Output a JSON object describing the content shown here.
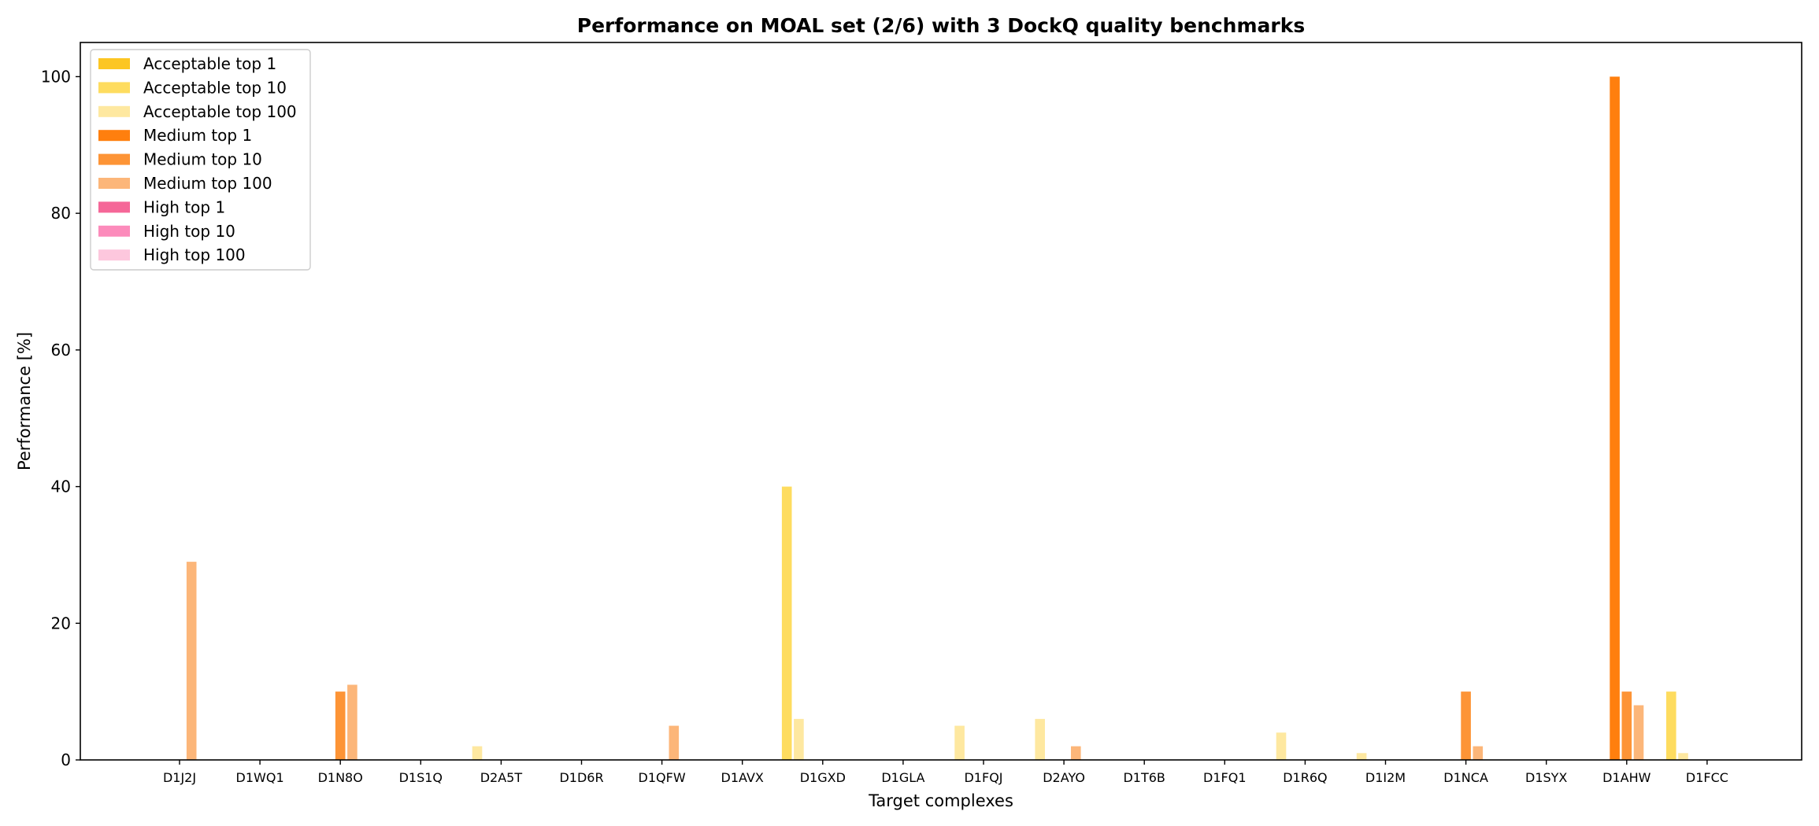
{
  "chart_data": {
    "type": "bar",
    "title": "Performance on MOAL set (2/6) with 3 DockQ quality benchmarks",
    "xlabel": "Target complexes",
    "ylabel": "Performance [%]",
    "ylim": [
      0,
      105
    ],
    "yticks": [
      0,
      20,
      40,
      60,
      80,
      100
    ],
    "grid": false,
    "legend_position": "top-left",
    "categories": [
      "D1J2J",
      "D1WQ1",
      "D1N8O",
      "D1S1Q",
      "D2A5T",
      "D1D6R",
      "D1QFW",
      "D1AVX",
      "D1GXD",
      "D1GLA",
      "D1FQJ",
      "D2AYO",
      "D1T6B",
      "D1FQ1",
      "D1R6Q",
      "D1I2M",
      "D1NCA",
      "D1SYX",
      "D1AHW",
      "D1FCC"
    ],
    "series": [
      {
        "name": "Acceptable top 1",
        "color": "#fcc623",
        "values": [
          0,
          0,
          0,
          0,
          0,
          0,
          0,
          0,
          0,
          0,
          0,
          0,
          0,
          0,
          0,
          0,
          0,
          0,
          0,
          0
        ]
      },
      {
        "name": "Acceptable top 10",
        "color": "#fedc5f",
        "values": [
          0,
          0,
          0,
          0,
          0,
          0,
          0,
          0,
          40,
          0,
          0,
          0,
          0,
          0,
          0,
          0,
          0,
          0,
          0,
          10
        ]
      },
      {
        "name": "Acceptable top 100",
        "color": "#fee8a0",
        "values": [
          0,
          0,
          0,
          0,
          2,
          0,
          0,
          0,
          6,
          0,
          5,
          6,
          0,
          0,
          4,
          1,
          0,
          0,
          0,
          1
        ]
      },
      {
        "name": "Medium top 1",
        "color": "#ff7f0e",
        "values": [
          0,
          0,
          0,
          0,
          0,
          0,
          0,
          0,
          0,
          0,
          0,
          0,
          0,
          0,
          0,
          0,
          0,
          0,
          100,
          0
        ]
      },
      {
        "name": "Medium top 10",
        "color": "#fd9436",
        "values": [
          0,
          0,
          10,
          0,
          0,
          0,
          0,
          0,
          0,
          0,
          0,
          0,
          0,
          0,
          0,
          0,
          10,
          0,
          10,
          0
        ]
      },
      {
        "name": "Medium top 100",
        "color": "#fcb679",
        "values": [
          29,
          0,
          11,
          0,
          0,
          0,
          5,
          0,
          0,
          0,
          0,
          2,
          0,
          0,
          0,
          0,
          2,
          0,
          8,
          0
        ]
      },
      {
        "name": "High top 1",
        "color": "#f56798",
        "values": [
          0,
          0,
          0,
          0,
          0,
          0,
          0,
          0,
          0,
          0,
          0,
          0,
          0,
          0,
          0,
          0,
          0,
          0,
          0,
          0
        ]
      },
      {
        "name": "High top 10",
        "color": "#fc8bbb",
        "values": [
          0,
          0,
          0,
          0,
          0,
          0,
          0,
          0,
          0,
          0,
          0,
          0,
          0,
          0,
          0,
          0,
          0,
          0,
          0,
          0
        ]
      },
      {
        "name": "High top 100",
        "color": "#fdc7dd",
        "values": [
          0,
          0,
          0,
          0,
          0,
          0,
          0,
          0,
          0,
          0,
          0,
          0,
          0,
          0,
          0,
          0,
          0,
          0,
          0,
          0
        ]
      }
    ]
  }
}
